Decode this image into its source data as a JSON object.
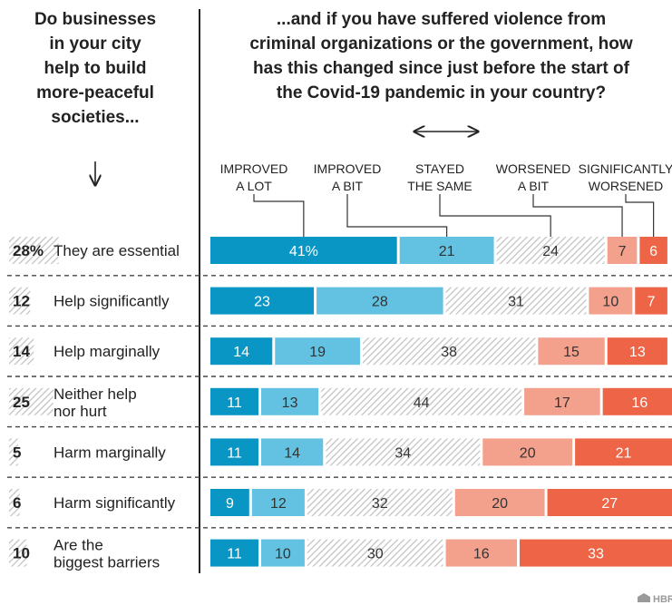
{
  "header": {
    "left_question": [
      "Do businesses",
      "in your city",
      "help to build",
      "more-peaceful",
      "societies..."
    ],
    "right_question": [
      "...and if you have suffered violence from",
      "criminal organizations or the government, how",
      "has this changed since just before the start of",
      "the Covid-19 pandemic in your country?"
    ]
  },
  "brand": "HBR",
  "colors": {
    "improved_a_lot": "#0a96c4",
    "improved_a_bit": "#63c2e2",
    "stayed_the_same": "#d6d6d6",
    "worsened_a_bit": "#f3a08d",
    "significantly_worsened": "#ee6446",
    "left_share_hatch": "#c8c8c8"
  },
  "chart_data": {
    "type": "bar",
    "stacked": true,
    "orientation": "horizontal",
    "normalized_to": 100,
    "legend_placement": "top",
    "categories": [
      "They are essential",
      "Help significantly",
      "Help marginally",
      "Neither help nor hurt",
      "Harm marginally",
      "Harm significantly",
      "Are the biggest barriers"
    ],
    "category_lines": [
      [
        "They are essential"
      ],
      [
        "Help significantly"
      ],
      [
        "Help marginally"
      ],
      [
        "Neither help",
        "nor hurt"
      ],
      [
        "Harm marginally"
      ],
      [
        "Harm significantly"
      ],
      [
        "Are the",
        "biggest barriers"
      ]
    ],
    "share_of_respondents": [
      28,
      12,
      14,
      25,
      5,
      6,
      10
    ],
    "share_labels": [
      "28%",
      "12",
      "14",
      "25",
      "5",
      "6",
      "10"
    ],
    "series": [
      {
        "name": "IMPROVED A LOT",
        "label_lines": [
          "IMPROVED",
          "A LOT"
        ],
        "color_key": "improved_a_lot",
        "values": [
          41,
          23,
          14,
          11,
          11,
          9,
          11
        ],
        "value_labels": [
          "41%",
          "23",
          "14",
          "11",
          "11",
          "9",
          "11"
        ]
      },
      {
        "name": "IMPROVED A BIT",
        "label_lines": [
          "IMPROVED",
          "A BIT"
        ],
        "color_key": "improved_a_bit",
        "values": [
          21,
          28,
          19,
          13,
          14,
          12,
          10
        ],
        "value_labels": [
          "21",
          "28",
          "19",
          "13",
          "14",
          "12",
          "10"
        ]
      },
      {
        "name": "STAYED THE SAME",
        "label_lines": [
          "STAYED",
          "THE SAME"
        ],
        "color_key": "stayed_the_same",
        "values": [
          24,
          31,
          38,
          44,
          34,
          32,
          30
        ],
        "value_labels": [
          "24",
          "31",
          "38",
          "44",
          "34",
          "32",
          "30"
        ]
      },
      {
        "name": "WORSENED A BIT",
        "label_lines": [
          "WORSENED",
          "A BIT"
        ],
        "color_key": "worsened_a_bit",
        "values": [
          7,
          10,
          15,
          17,
          20,
          20,
          16
        ],
        "value_labels": [
          "7",
          "10",
          "15",
          "17",
          "20",
          "20",
          "16"
        ]
      },
      {
        "name": "SIGNIFICANTLY WORSENED",
        "label_lines": [
          "SIGNIFICANTLY",
          "WORSENED"
        ],
        "color_key": "significantly_worsened",
        "values": [
          6,
          7,
          13,
          16,
          21,
          27,
          33
        ],
        "value_labels": [
          "6",
          "7",
          "13",
          "16",
          "21",
          "27",
          "33"
        ]
      }
    ]
  }
}
